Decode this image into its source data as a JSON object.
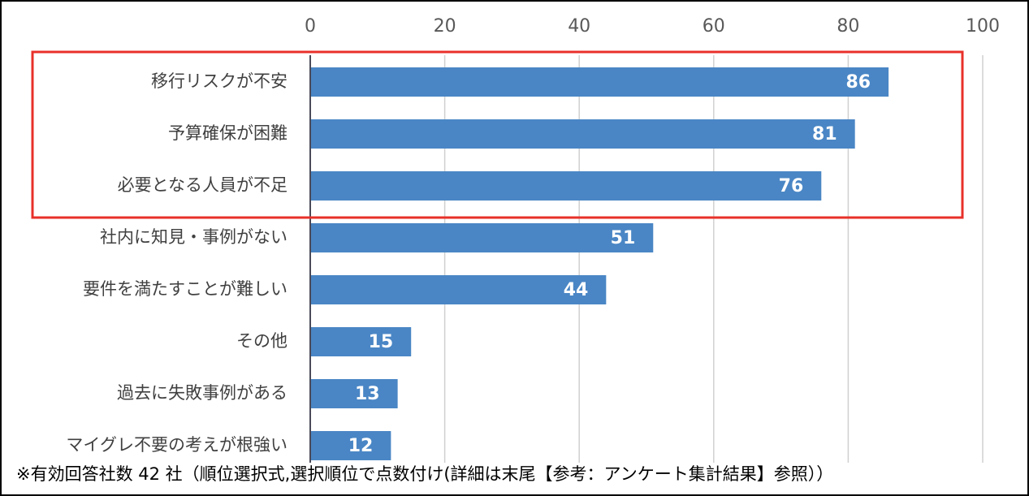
{
  "chart_data": {
    "type": "bar",
    "orientation": "horizontal",
    "categories": [
      "移行リスクが不安",
      "予算確保が困難",
      "必要となる人員が不足",
      "社内に知見・事例がない",
      "要件を満たすことが難しい",
      "その他",
      "過去に失敗事例がある",
      "マイグレ不要の考えが根強い"
    ],
    "values": [
      86,
      81,
      76,
      51,
      44,
      15,
      13,
      12
    ],
    "color": "#4a86c5",
    "xlim": [
      0,
      100
    ],
    "xticks": [
      0,
      20,
      40,
      60,
      80,
      100
    ],
    "grid": true,
    "note": "※有効回答社数 42 社（順位選択式,選択順位で点数付け(詳細は末尾【参考：アンケート集計結果】参照））"
  }
}
